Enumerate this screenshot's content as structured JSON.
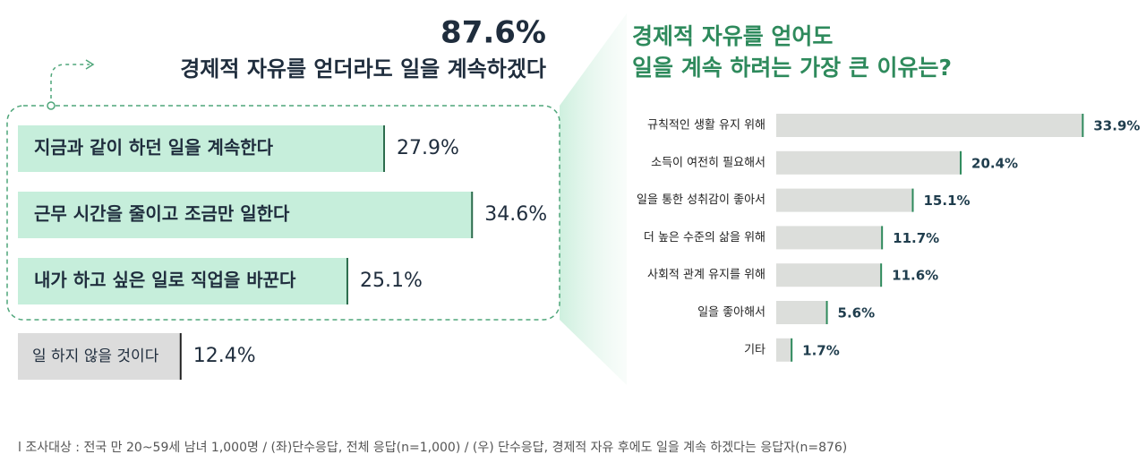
{
  "header": {
    "highlight": "87.6%",
    "title": "경제적 자유를 얻더라도 일을 계속하겠다"
  },
  "chart_data": [
    {
      "type": "bar",
      "orientation": "horizontal",
      "categories": [
        "지금과 같이 하던 일을 계속한다",
        "근무 시간을 줄이고 조금만 일한다",
        "내가 하고 싶은 일로 직업을 바꾼다",
        "일 하지 않을 것이다"
      ],
      "values": [
        27.9,
        34.6,
        25.1,
        12.4
      ],
      "value_labels": [
        "27.9%",
        "34.6%",
        "25.1%",
        "12.4%"
      ],
      "colors": [
        "#c6eedb",
        "#c6eedb",
        "#c6eedb",
        "#dcdcdc"
      ]
    },
    {
      "type": "bar",
      "orientation": "horizontal",
      "title": [
        "경제적 자유를 얻어도",
        "일을 계속 하려는 가장 큰 이유는?"
      ],
      "categories": [
        "규칙적인 생활 유지 위해",
        "소득이 여전히 필요해서",
        "일을 통한 성취감이 좋아서",
        "더 높은 수준의 삶을 위해",
        "사회적 관계 유지를 위해",
        "일을 좋아해서",
        "기타"
      ],
      "values": [
        33.9,
        20.4,
        15.1,
        11.7,
        11.6,
        5.6,
        1.7
      ],
      "value_labels": [
        "33.9%",
        "20.4%",
        "15.1%",
        "11.7%",
        "11.6%",
        "5.6%",
        "1.7%"
      ],
      "color": "#dcdedb",
      "accent_color": "#2e8a5c"
    }
  ],
  "footnote": "l 조사대상 : 전국 만 20~59세 남녀 1,000명  /  (좌)단수응답,  전체 응답(n=1,000) / (우) 단수응답, 경제적 자유 후에도 일을 계속 하겠다는 응답자(n=876)"
}
